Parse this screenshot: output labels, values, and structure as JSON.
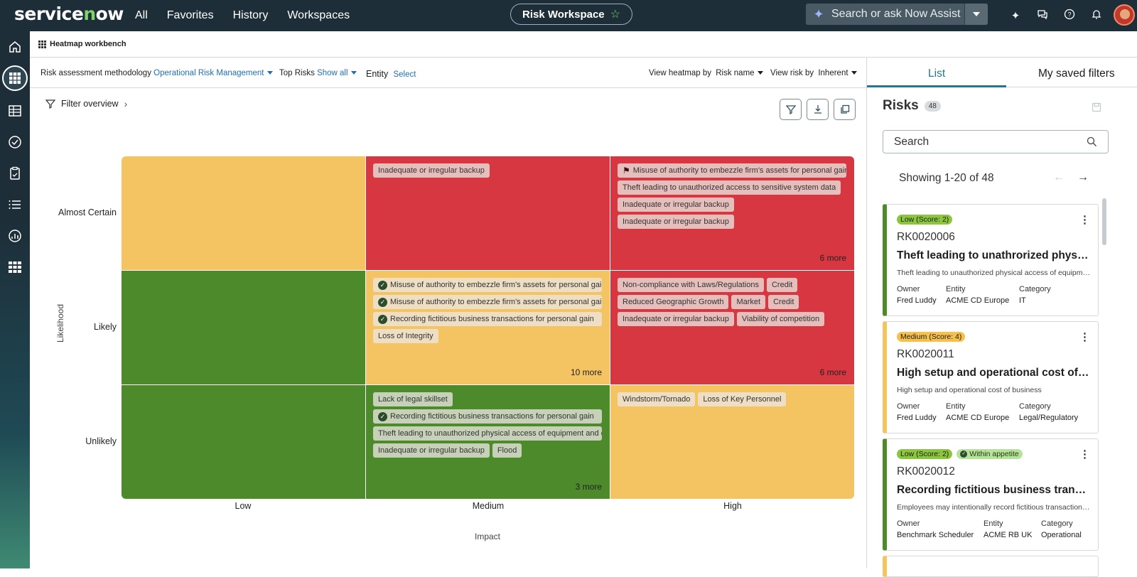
{
  "topbar": {
    "logo": "servicenow",
    "nav": [
      "All",
      "Favorites",
      "History",
      "Workspaces"
    ],
    "workspace": "Risk Workspace",
    "assist_placeholder": "Search or ask Now Assist"
  },
  "subheader": {
    "title": "Heatmap workbench"
  },
  "filters": {
    "methodology_label": "Risk assessment methodology",
    "methodology_value": "Operational Risk Management",
    "top_risks_label": "Top Risks",
    "top_risks_value": "Show all",
    "entity_label": "Entity",
    "entity_value": "Select",
    "view_heatmap_label": "View heatmap by",
    "view_heatmap_value": "Risk name",
    "view_risk_label": "View risk by",
    "view_risk_value": "Inherent"
  },
  "overview": {
    "label": "Filter overview"
  },
  "heatmap": {
    "y_axis": "Likelihood",
    "x_axis": "Impact",
    "rows": [
      "Almost Certain",
      "Likely",
      "Unlikely"
    ],
    "cols": [
      "Low",
      "Medium",
      "High"
    ],
    "cells": [
      {
        "row": 0,
        "col": 0,
        "color": "#f5c462",
        "tags": [],
        "more": ""
      },
      {
        "row": 0,
        "col": 1,
        "color": "#d73741",
        "tags": [
          {
            "text": "Inadequate or irregular backup"
          }
        ],
        "more": ""
      },
      {
        "row": 0,
        "col": 2,
        "color": "#d73741",
        "tags": [
          {
            "text": "Misuse of authority to embezzle firm's assets for personal gain",
            "icon": "flag",
            "full": true
          },
          {
            "text": "Theft leading to unauthorized access to sensitive system data"
          },
          {
            "text": "Inadequate or irregular backup"
          },
          {
            "text": "Inadequate or irregular backup"
          }
        ],
        "more": "6 more"
      },
      {
        "row": 1,
        "col": 0,
        "color": "#4c8a2b",
        "tags": [],
        "more": ""
      },
      {
        "row": 1,
        "col": 1,
        "color": "#f5c462",
        "tags": [
          {
            "text": "Misuse of authority to embezzle firm's assets for personal gain",
            "icon": "check",
            "full": true
          },
          {
            "text": "Misuse of authority to embezzle firm's assets for personal gain",
            "icon": "check",
            "full": true
          },
          {
            "text": "Recording fictitious business transactions for personal gain",
            "icon": "check",
            "full": true
          },
          {
            "text": "Loss of Integrity"
          }
        ],
        "more": "10 more"
      },
      {
        "row": 1,
        "col": 2,
        "color": "#d73741",
        "tags": [
          {
            "text": "Non-compliance with Laws/Regulations"
          },
          {
            "text": "Credit"
          },
          {
            "text": "Reduced Geographic Growth"
          },
          {
            "text": "Market"
          },
          {
            "text": "Credit"
          },
          {
            "text": "Inadequate or irregular backup"
          },
          {
            "text": "Viability of competition"
          }
        ],
        "more": "6 more"
      },
      {
        "row": 2,
        "col": 0,
        "color": "#4c8a2b",
        "tags": [],
        "more": ""
      },
      {
        "row": 2,
        "col": 1,
        "color": "#4c8a2b",
        "tags": [
          {
            "text": "Lack of legal skillset"
          },
          {
            "text": "Recording fictitious business transactions for personal gain",
            "icon": "check",
            "full": true
          },
          {
            "text": "Theft leading to unauthorized physical access of equipment and data",
            "full": true
          },
          {
            "text": "Inadequate or irregular backup"
          },
          {
            "text": "Flood"
          }
        ],
        "more": "3 more"
      },
      {
        "row": 2,
        "col": 2,
        "color": "#f5c462",
        "tags": [
          {
            "text": "Windstorm/Tornado"
          },
          {
            "text": "Loss of Key Personnel"
          }
        ],
        "more": ""
      }
    ]
  },
  "panel": {
    "tabs": [
      "List",
      "My saved filters"
    ],
    "title": "Risks",
    "count": "48",
    "search_placeholder": "Search",
    "showing": "Showing 1-20 of 48",
    "meta_owner": "Owner",
    "meta_entity": "Entity",
    "meta_category": "Category",
    "cards": [
      {
        "score": "Low (Score: 2)",
        "level": "low",
        "appetite": "",
        "id": "RK0020006",
        "title": "Theft leading to unathrorized physical access of equipment",
        "desc": "Theft leading to unauthorized physical access of equipment and data",
        "owner": "Fred Luddy",
        "entity": "ACME CD Europe",
        "category": "IT",
        "color": "#4c8a2b"
      },
      {
        "score": "Medium (Score: 4)",
        "level": "med",
        "appetite": "",
        "id": "RK0020011",
        "title": "High setup and operational cost of business",
        "desc": "High setup and operational cost of business",
        "owner": "Fred Luddy",
        "entity": "ACME CD Europe",
        "category": "Legal/Regulatory",
        "color": "#f5c462"
      },
      {
        "score": "Low (Score: 2)",
        "level": "low",
        "appetite": "Within appetite",
        "id": "RK0020012",
        "title": "Recording fictitious business transactions for personal gain",
        "desc": "Employees may intentionally record fictitious transactions for personal gain",
        "owner": "Benchmark Scheduler",
        "entity": "ACME RB UK",
        "category": "Operational",
        "color": "#4c8a2b"
      }
    ]
  }
}
